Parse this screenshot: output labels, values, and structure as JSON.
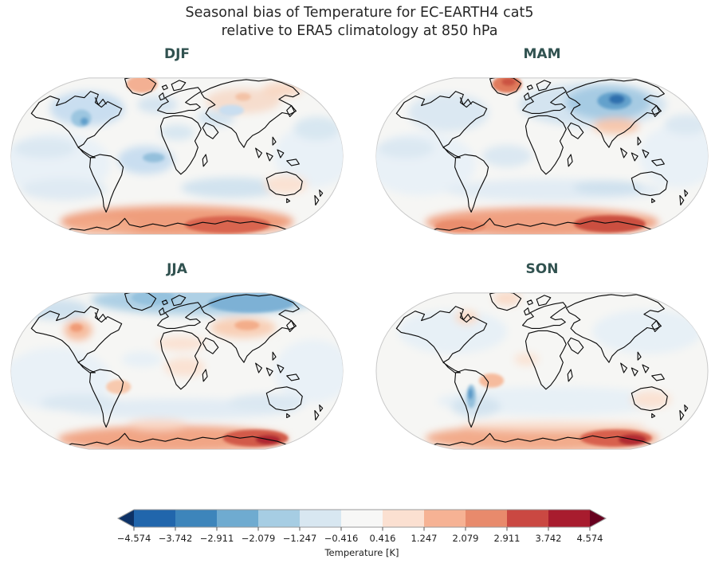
{
  "title": {
    "line1": "Seasonal bias of Temperature for EC-EARTH4 cat5",
    "line2": "relative to ERA5 climatology at 850 hPa"
  },
  "panels": [
    {
      "id": "djf",
      "label": "DJF"
    },
    {
      "id": "mam",
      "label": "MAM"
    },
    {
      "id": "jja",
      "label": "JJA"
    },
    {
      "id": "son",
      "label": "SON"
    }
  ],
  "colorbar": {
    "label": "Temperature [K]",
    "ticks": [
      "−4.574",
      "−3.742",
      "−2.911",
      "−2.079",
      "−1.247",
      "−0.416",
      "0.416",
      "1.247",
      "2.079",
      "2.911",
      "3.742",
      "4.574"
    ],
    "segments": [
      "#2166ac",
      "#3d85bb",
      "#6fabd0",
      "#a6cde3",
      "#d8e7f1",
      "#f7f7f6",
      "#fbe0d1",
      "#f6b294",
      "#e88a6c",
      "#ca4842",
      "#a81c2e"
    ],
    "under_color": "#0d3266",
    "over_color": "#67001f",
    "outline_color": "#9a9a9a",
    "tick_color": "#555555"
  },
  "colors": {
    "title_text": "#262626",
    "season_title": "#315250",
    "map_border": "#c8c8c8",
    "map_base": "#f6f6f4",
    "coastline": "#0a0a0a"
  },
  "chart_data": {
    "type": "heatmap",
    "subtype": "filled-contour seasonal bias maps, Robinson projection, 2x2 panel grid",
    "title": "Seasonal bias of Temperature for EC-EARTH4 cat5 relative to ERA5 climatology at 850 hPa",
    "variable": "Temperature bias [K] at 850 hPa (EC-EARTH4 cat5 minus ERA5 climatology)",
    "panels": [
      "DJF",
      "MAM",
      "JJA",
      "SON"
    ],
    "colorbar": {
      "label": "Temperature [K]",
      "tick_values": [
        -4.574,
        -3.742,
        -2.911,
        -2.079,
        -1.247,
        -0.416,
        0.416,
        1.247,
        2.079,
        2.911,
        3.742,
        4.574
      ],
      "extend": "both",
      "colormap": "RdBu reversed (blue = cold bias, red = warm bias)"
    },
    "panel_features": {
      "DJF": [
        "warm bias ~2-3 K over Antarctica",
        "warm bias over Greenland",
        "cool bias over NW North America and northern Canada",
        "weak cool bias over tropical Atlantic and Pacific",
        "weak warm bias over Australia and NE Siberia"
      ],
      "MAM": [
        "strong cool bias ~-2 to -3 K centered on western Siberia",
        "strong warm bias over Greenland",
        "warm bias over Tibetan Plateau / northern India",
        "warm bias up to ~3-4 K over East Antarctica",
        "weak cool bias over most oceans"
      ],
      "JJA": [
        "cool bias ~-2 K along Arctic coast of Eurasia",
        "warm bias over western United States and central Asia",
        "weak warm bias over Sahara, tropical Africa and interior Brazil",
        "warm bias up to ~4 K over East Antarctica",
        "weak cool bias over southern mid-latitude oceans"
      ],
      "SON": [
        "weak cool bias over most oceans",
        "warm bias over NE Brazil and Australia",
        "localized cool bias along the Andes",
        "warm bias up to ~4 K over East Antarctica",
        "weak warm bias over Greenland and Hudson Bay area"
      ]
    }
  }
}
